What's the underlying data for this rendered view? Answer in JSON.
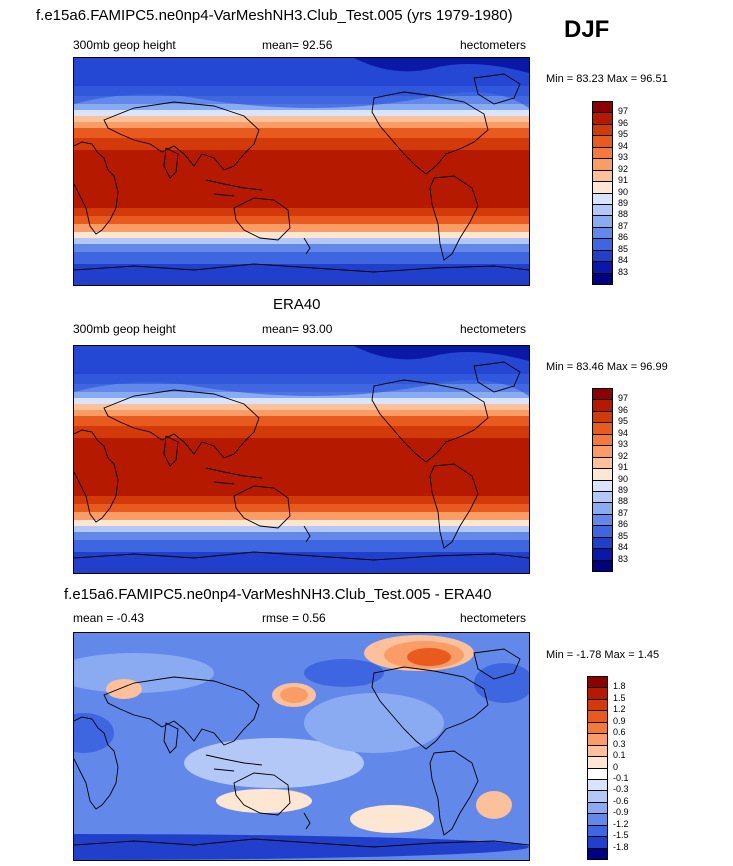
{
  "season": "DJF",
  "panels": [
    {
      "title": "f.e15a6.FAMIPC5.ne0np4-VarMeshNH3.Club_Test.005 (yrs 1979-1980)",
      "left_label": "300mb geop height",
      "center_label": "mean=  92.56",
      "right_label": "hectometers",
      "min_label": "Min =  83.23",
      "max_label": "Max =  96.51",
      "colorbar_levels": [
        "97",
        "96",
        "95",
        "94",
        "93",
        "92",
        "91",
        "90",
        "89",
        "88",
        "87",
        "86",
        "85",
        "84",
        "83"
      ]
    },
    {
      "title": "ERA40",
      "left_label": "300mb geop height",
      "center_label": "mean=  93.00",
      "right_label": "hectometers",
      "min_label": "Min =  83.46",
      "max_label": "Max =  96.99",
      "colorbar_levels": [
        "97",
        "96",
        "95",
        "94",
        "93",
        "92",
        "91",
        "90",
        "89",
        "88",
        "87",
        "86",
        "85",
        "84",
        "83"
      ]
    },
    {
      "title": "f.e15a6.FAMIPC5.ne0np4-VarMeshNH3.Club_Test.005 - ERA40",
      "left_label": "mean =  -0.43",
      "center_label": "rmse =   0.56",
      "right_label": "hectometers",
      "min_label": "Min =  -1.78",
      "max_label": "Max =   1.45",
      "colorbar_levels": [
        "1.8",
        "1.5",
        "1.2",
        "0.9",
        "0.6",
        "0.3",
        "0.1",
        "0",
        "-0.1",
        "-0.3",
        "-0.6",
        "-0.9",
        "-1.2",
        "-1.5",
        "-1.8"
      ]
    }
  ],
  "colors": {
    "abs_scale": [
      "#8b0000",
      "#b51a00",
      "#d23a0a",
      "#e95a1e",
      "#f47a3c",
      "#fa9c66",
      "#fcc09a",
      "#fde6d2",
      "#d8e4fb",
      "#b4c8f7",
      "#8aaaf2",
      "#6289ea",
      "#3e66e0",
      "#2040cc",
      "#0a18a8",
      "#000080"
    ],
    "diff_scale": [
      "#8b0000",
      "#b51a00",
      "#d23a0a",
      "#e95a1e",
      "#f47a3c",
      "#fa9c66",
      "#fcc09a",
      "#fde6d2",
      "#ffffff",
      "#d8e4fb",
      "#b4c8f7",
      "#8aaaf2",
      "#6289ea",
      "#3e66e0",
      "#2040cc",
      "#000080"
    ]
  }
}
